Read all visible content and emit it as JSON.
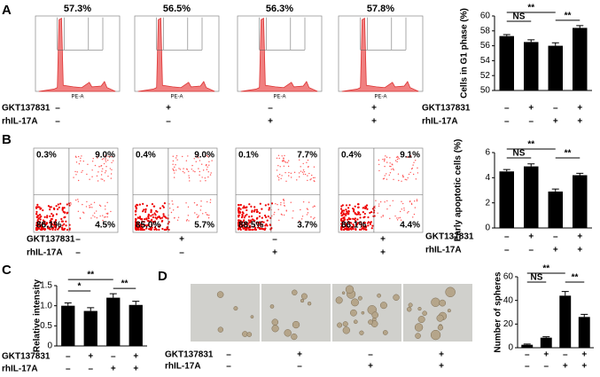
{
  "panels": [
    "A",
    "B",
    "C",
    "D"
  ],
  "histograms": {
    "axis_label": "PE-A",
    "percents": [
      "57.3%",
      "56.5%",
      "56.3%",
      "57.8%"
    ],
    "conditions": [
      {
        "name": "GKT137831",
        "marks": [
          "–",
          "+",
          "–",
          "+"
        ]
      },
      {
        "name": "rhIL-17A",
        "marks": [
          "–",
          "–",
          "+",
          "+"
        ]
      }
    ]
  },
  "dot_plots": {
    "quadrants": [
      [
        "0.3%",
        "9.0%",
        "86.1%",
        "4.5%"
      ],
      [
        "0.4%",
        "9.0%",
        "85.0%",
        "5.7%"
      ],
      [
        "0.1%",
        "7.7%",
        "88.5%",
        "3.7%"
      ],
      [
        "0.4%",
        "9.1%",
        "86.1%",
        "4.4%"
      ]
    ],
    "conditions": [
      {
        "name": "GKT137831",
        "marks": [
          "–",
          "+",
          "–",
          "+"
        ]
      },
      {
        "name": "rhIL-17A",
        "marks": [
          "–",
          "–",
          "+",
          "+"
        ]
      }
    ]
  },
  "spheres": {
    "conditions": [
      {
        "name": "GKT137831",
        "marks": [
          "–",
          "+",
          "–",
          "+"
        ]
      },
      {
        "name": "rhIL-17A",
        "marks": [
          "–",
          "–",
          "+",
          "+"
        ]
      }
    ]
  },
  "chart_data": [
    {
      "type": "bar",
      "y_label": "Cells in G1 phase (%)",
      "color": "#000000",
      "values": [
        57.3,
        56.5,
        56.0,
        58.4
      ],
      "errors": [
        0.2,
        0.3,
        0.4,
        0.3
      ],
      "ylim": [
        50,
        60
      ],
      "yticks": [
        50,
        52,
        54,
        56,
        58,
        60
      ],
      "annotations": [
        "NS",
        "**",
        "**"
      ],
      "conditions": [
        {
          "name": "GKT137831",
          "marks": [
            "–",
            "+",
            "–",
            "+"
          ]
        },
        {
          "name": "rhIL-17A",
          "marks": [
            "–",
            "–",
            "+",
            "+"
          ]
        }
      ]
    },
    {
      "type": "bar",
      "y_label": "Early apoptotic cells (%)",
      "color": "#000000",
      "values": [
        4.5,
        4.9,
        2.9,
        4.2
      ],
      "errors": [
        0.15,
        0.2,
        0.2,
        0.15
      ],
      "ylim": [
        0,
        6
      ],
      "yticks": [
        0,
        2,
        4,
        6
      ],
      "annotations": [
        "NS",
        "**",
        "**"
      ],
      "conditions": [
        {
          "name": "GKT137831",
          "marks": [
            "–",
            "+",
            "–",
            "+"
          ]
        },
        {
          "name": "rhIL-17A",
          "marks": [
            "–",
            "–",
            "+",
            "+"
          ]
        }
      ]
    },
    {
      "type": "bar",
      "y_label": "Relative intensity",
      "color": "#000000",
      "values": [
        1.0,
        0.87,
        1.2,
        1.02
      ],
      "errors": [
        0.07,
        0.08,
        0.1,
        0.09
      ],
      "ylim": [
        0,
        1.5
      ],
      "yticks": [
        0,
        0.5,
        {
          "value": 1,
          "label": "1.0"
        },
        1.5
      ],
      "annotations": [
        "*",
        "**",
        "**"
      ],
      "conditions": [
        {
          "name": "GKT137831",
          "marks": [
            "–",
            "+",
            "–",
            "+"
          ]
        },
        {
          "name": "rhIL-17A",
          "marks": [
            "–",
            "–",
            "+",
            "+"
          ]
        }
      ]
    },
    {
      "type": "bar",
      "y_label": "Number of spheres",
      "color": "#000000",
      "values": [
        2.5,
        8.5,
        44,
        26
      ],
      "errors": [
        0.6,
        0.8,
        3.5,
        2.2
      ],
      "ylim": [
        0,
        60
      ],
      "yticks": [
        0,
        20,
        40,
        60
      ],
      "annotations": [
        "NS",
        "**",
        "**"
      ],
      "conditions": [
        {
          "marks": [
            "–",
            "+",
            "–",
            "+"
          ]
        },
        {
          "marks": [
            "–",
            "–",
            "+",
            "+"
          ]
        }
      ]
    }
  ]
}
